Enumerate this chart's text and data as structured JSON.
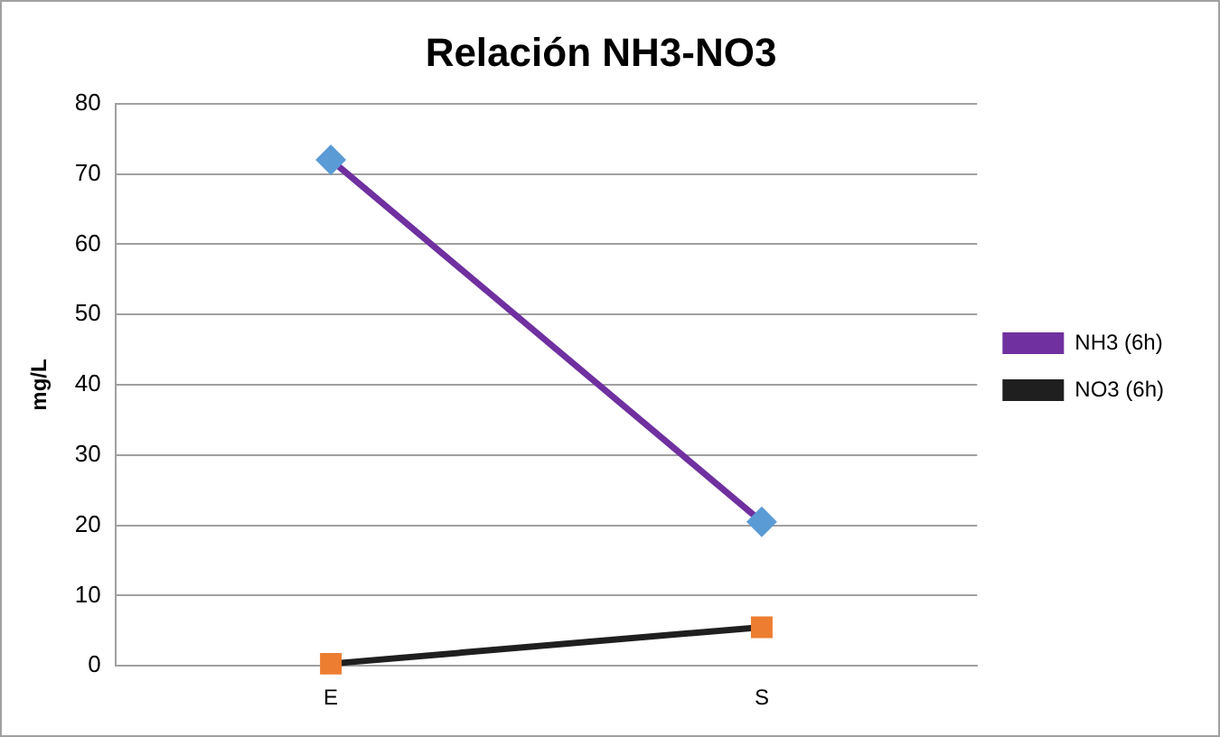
{
  "chart_data": {
    "type": "line",
    "title": "Relación NH3-NO3",
    "ylabel": "mg/L",
    "categories": [
      "E",
      "S"
    ],
    "series": [
      {
        "name": "NH3 (6h)",
        "color": "#7030a0",
        "colors": [
          "#5b9bd5",
          "#5b9bd5"
        ],
        "marker": "diamond",
        "values": [
          72,
          20.5
        ]
      },
      {
        "name": "NO3 (6h)",
        "color": "#1f1f1f",
        "colors": [
          "#ed7d31",
          "#ed7d31"
        ],
        "marker": "square",
        "values": [
          0.3,
          5.5
        ]
      }
    ],
    "ylim": [
      0,
      80
    ],
    "yticks": [
      0,
      10,
      20,
      30,
      40,
      50,
      60,
      70,
      80
    ],
    "grid": "y",
    "legend": "right",
    "line_style": "solid"
  }
}
